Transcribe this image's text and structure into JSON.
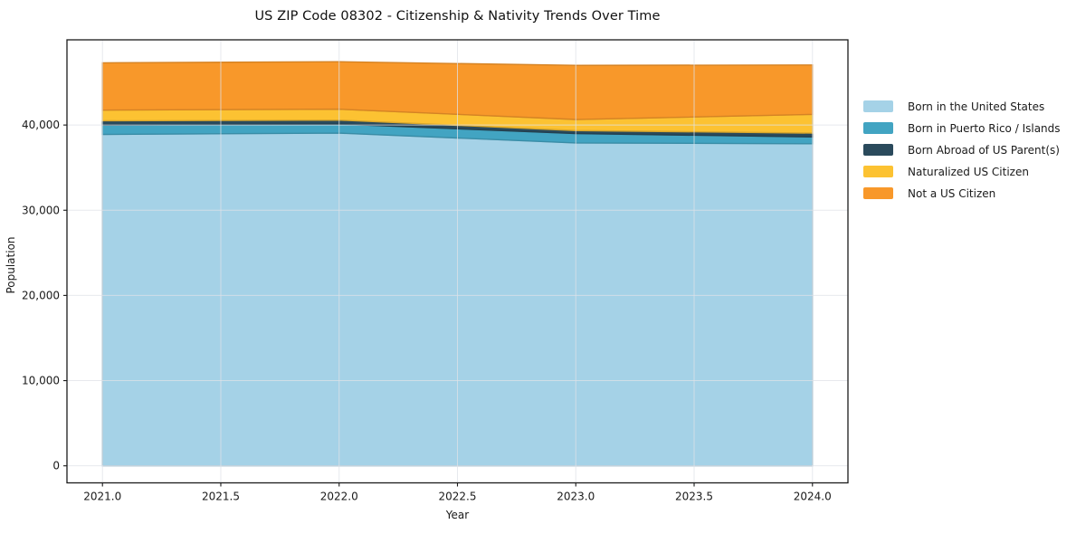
{
  "chart_data": {
    "type": "area",
    "stacked": true,
    "title": "US ZIP Code 08302 - Citizenship & Nativity Trends Over Time",
    "xlabel": "Year",
    "ylabel": "Population",
    "x": [
      2021,
      2022,
      2023,
      2024
    ],
    "series": [
      {
        "name": "Born in the United States",
        "color": "#a5d2e7",
        "values": [
          38900,
          39050,
          37900,
          37800
        ]
      },
      {
        "name": "Born in Puerto Rico / Islands",
        "color": "#42a4c2",
        "values": [
          1100,
          1070,
          1100,
          800
        ]
      },
      {
        "name": "Born Abroad of US Parent(s)",
        "color": "#2a4a5c",
        "values": [
          500,
          460,
          350,
          450
        ]
      },
      {
        "name": "Naturalized US Citizen",
        "color": "#fcc232",
        "values": [
          1250,
          1280,
          1300,
          2200
        ]
      },
      {
        "name": "Not a US Citizen",
        "color": "#f8982a",
        "values": [
          5550,
          5570,
          6350,
          5800
        ]
      }
    ],
    "xlim": [
      2020.85,
      2024.15
    ],
    "ylim": [
      -2000,
      50000
    ],
    "x_ticks": [
      2021.0,
      2021.5,
      2022.0,
      2022.5,
      2023.0,
      2023.5,
      2024.0
    ],
    "x_tick_labels": [
      "2021.0",
      "2021.5",
      "2022.0",
      "2022.5",
      "2023.0",
      "2023.5",
      "2024.0"
    ],
    "y_ticks": [
      0,
      10000,
      20000,
      30000,
      40000
    ],
    "y_tick_labels": [
      "0",
      "10,000",
      "20,000",
      "30,000",
      "40,000"
    ],
    "grid": true,
    "grid_color": "#dfe2e8",
    "axis_color": "#1b1b1b",
    "tick_label_color": "#1a1a1a",
    "legend_position": "right"
  }
}
